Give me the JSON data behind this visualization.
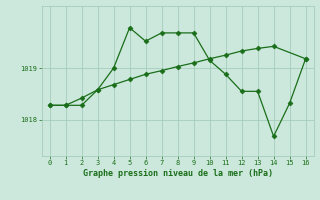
{
  "line1_x": [
    0,
    1,
    2,
    3,
    4,
    5,
    6,
    7,
    8,
    9,
    10,
    11,
    12,
    13,
    14,
    15,
    16
  ],
  "line1_y": [
    1018.28,
    1018.28,
    1018.28,
    1018.58,
    1019.0,
    1019.78,
    1019.52,
    1019.68,
    1019.68,
    1019.68,
    1019.15,
    1018.88,
    1018.55,
    1018.55,
    1017.68,
    1018.32,
    1019.18
  ],
  "line2_x": [
    0,
    1,
    2,
    3,
    4,
    5,
    6,
    7,
    8,
    9,
    10,
    11,
    12,
    13,
    14,
    16
  ],
  "line2_y": [
    1018.28,
    1018.28,
    1018.42,
    1018.58,
    1018.68,
    1018.78,
    1018.88,
    1018.95,
    1019.03,
    1019.1,
    1019.18,
    1019.25,
    1019.33,
    1019.38,
    1019.42,
    1019.18
  ],
  "line_color": "#1a6e1a",
  "bg_color": "#cce8dc",
  "grid_color": "#9dc8b4",
  "xlabel": "Graphe pression niveau de la mer (hPa)",
  "ytick_labels": [
    "1018",
    "1019"
  ],
  "ytick_vals": [
    1018.0,
    1019.0
  ],
  "ylim": [
    1017.3,
    1020.2
  ],
  "xlim": [
    -0.5,
    16.5
  ],
  "xtick_vals": [
    0,
    1,
    2,
    3,
    4,
    5,
    6,
    7,
    8,
    9,
    10,
    11,
    12,
    13,
    14,
    15,
    16
  ]
}
